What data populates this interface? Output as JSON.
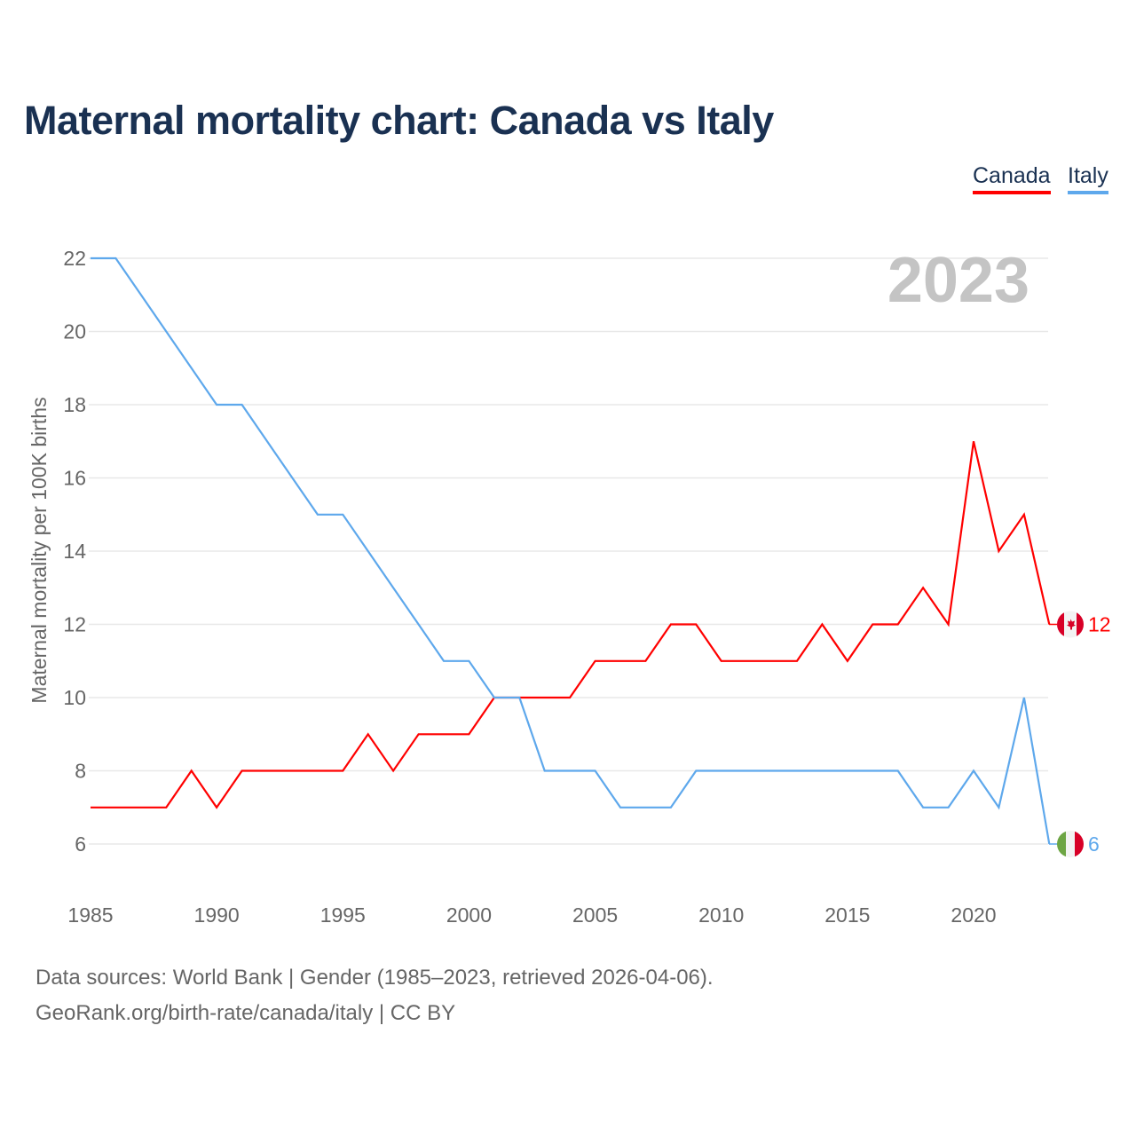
{
  "chart_data": {
    "type": "line",
    "title": "Maternal mortality chart: Canada vs Italy",
    "ylabel": "Maternal mortality per 100K births",
    "xlabel": "",
    "year_label": "2023",
    "x": [
      1985,
      1986,
      1987,
      1988,
      1989,
      1990,
      1991,
      1992,
      1993,
      1994,
      1995,
      1996,
      1997,
      1998,
      1999,
      2000,
      2001,
      2002,
      2003,
      2004,
      2005,
      2006,
      2007,
      2008,
      2009,
      2010,
      2011,
      2012,
      2013,
      2014,
      2015,
      2016,
      2017,
      2018,
      2019,
      2020,
      2021,
      2022,
      2023
    ],
    "series": [
      {
        "name": "Canada",
        "color": "#ff0000",
        "end_label": "12",
        "values": [
          7,
          7,
          7,
          7,
          8,
          7,
          8,
          8,
          8,
          8,
          8,
          9,
          8,
          9,
          9,
          9,
          10,
          10,
          10,
          10,
          11,
          11,
          11,
          12,
          12,
          11,
          11,
          11,
          11,
          12,
          11,
          12,
          12,
          13,
          12,
          17,
          14,
          15,
          12
        ]
      },
      {
        "name": "Italy",
        "color": "#5ea8ec",
        "end_label": "6",
        "values": [
          22,
          22,
          21,
          20,
          19,
          18,
          18,
          17,
          16,
          15,
          15,
          14,
          13,
          12,
          11,
          11,
          10,
          10,
          8,
          8,
          8,
          7,
          7,
          7,
          8,
          8,
          8,
          8,
          8,
          8,
          8,
          8,
          8,
          7,
          7,
          8,
          7,
          10,
          6
        ]
      }
    ],
    "xlim": [
      1985,
      2023
    ],
    "ylim": [
      5,
      23
    ],
    "xticks": [
      "1985",
      "1990",
      "1995",
      "2000",
      "2005",
      "2010",
      "2015",
      "2020"
    ],
    "yticks": [
      "6",
      "8",
      "10",
      "12",
      "14",
      "16",
      "18",
      "20",
      "22"
    ],
    "grid": true,
    "legend_position": "top-right"
  },
  "sources": {
    "line1": "Data sources: World Bank | Gender (1985–2023, retrieved 2026-04-06).",
    "line2": "GeoRank.org/birth-rate/canada/italy | CC BY"
  }
}
